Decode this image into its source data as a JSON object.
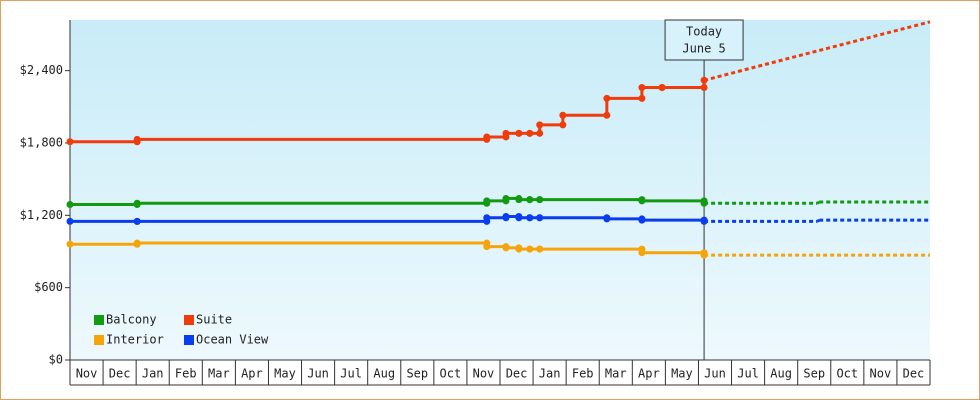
{
  "chart_data": {
    "type": "line",
    "step": true,
    "categories": [
      "Nov",
      "Dec",
      "Jan",
      "Feb",
      "Mar",
      "Apr",
      "May",
      "Jun",
      "Jul",
      "Aug",
      "Sep",
      "Oct",
      "Nov",
      "Dec",
      "Jan",
      "Feb",
      "Mar",
      "Apr",
      "May",
      "Jun",
      "Jul",
      "Aug",
      "Sep",
      "Oct",
      "Nov",
      "Dec"
    ],
    "xlim": [
      0,
      26
    ],
    "ylim": [
      0,
      2820
    ],
    "yticks": [
      {
        "value": 0,
        "label": "$0"
      },
      {
        "value": 600,
        "label": "$600"
      },
      {
        "value": 1200,
        "label": "$1,200"
      },
      {
        "value": 1800,
        "label": "$1,800"
      },
      {
        "value": 2400,
        "label": "$2,400"
      }
    ],
    "annotation": {
      "lines": [
        "Today",
        "June 5"
      ],
      "x": 19.17
    },
    "legend": "bottom-left",
    "series": [
      {
        "name": "Balcony",
        "color": "#129a12",
        "x": [
          0,
          2.03,
          12.6,
          13.18,
          13.57,
          13.9,
          14.2,
          17.29,
          19.17
        ],
        "values": [
          1290,
          1300,
          1320,
          1340,
          1330,
          1330,
          1330,
          1320,
          1300
        ],
        "forecast": {
          "x": [
            19.17,
            22.6,
            22.65,
            26
          ],
          "values": [
            1300,
            1300,
            1310,
            1310
          ]
        }
      },
      {
        "name": "Suite",
        "color": "#f03c0c",
        "x": [
          0,
          2.03,
          12.6,
          13.18,
          13.57,
          13.9,
          14.2,
          14.9,
          16.23,
          17.29,
          17.9,
          19.17
        ],
        "values": [
          1810,
          1830,
          1850,
          1880,
          1880,
          1880,
          1950,
          2030,
          2170,
          2260,
          2260,
          2320
        ],
        "forecast": {
          "x": [
            19.17,
            26
          ],
          "values": [
            2320,
            2805
          ]
        }
      },
      {
        "name": "Interior",
        "color": "#f5a50a",
        "x": [
          0,
          2.03,
          12.6,
          13.18,
          13.57,
          13.9,
          14.2,
          17.29,
          19.17
        ],
        "values": [
          960,
          970,
          940,
          930,
          920,
          920,
          920,
          890,
          870
        ],
        "forecast": {
          "x": [
            19.17,
            26
          ],
          "values": [
            870,
            870
          ]
        }
      },
      {
        "name": "Ocean View",
        "color": "#0a3cf0",
        "x": [
          0,
          2.03,
          12.6,
          13.18,
          13.57,
          13.9,
          14.2,
          16.23,
          17.29,
          19.17
        ],
        "values": [
          1150,
          1150,
          1180,
          1190,
          1180,
          1180,
          1180,
          1170,
          1160,
          1150
        ],
        "forecast": {
          "x": [
            19.17,
            22.6,
            22.65,
            26
          ],
          "values": [
            1150,
            1150,
            1160,
            1160
          ]
        }
      }
    ]
  }
}
